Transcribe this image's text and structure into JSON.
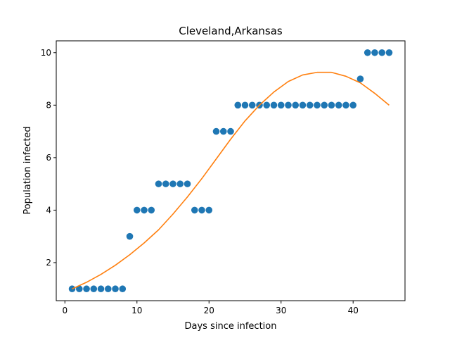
{
  "chart_data": {
    "type": "scatter",
    "title": "Cleveland,Arkansas",
    "xlabel": "Days since infection",
    "ylabel": "Population infected",
    "xlim": [
      -1.2,
      47.2
    ],
    "ylim": [
      0.55,
      10.45
    ],
    "xticks": [
      0,
      10,
      20,
      30,
      40
    ],
    "yticks": [
      2,
      4,
      6,
      8,
      10
    ],
    "grid": false,
    "series": [
      {
        "kind": "scatter",
        "color": "#1f77b4",
        "x": [
          1,
          2,
          3,
          4,
          5,
          6,
          7,
          8,
          9,
          10,
          11,
          12,
          13,
          14,
          15,
          16,
          17,
          18,
          19,
          20,
          21,
          22,
          23,
          24,
          25,
          26,
          27,
          28,
          29,
          30,
          31,
          32,
          33,
          34,
          35,
          36,
          37,
          38,
          39,
          40,
          41,
          42,
          43,
          44,
          45
        ],
        "y": [
          1,
          1,
          1,
          1,
          1,
          1,
          1,
          1,
          3,
          4,
          4,
          4,
          5,
          5,
          5,
          5,
          5,
          4,
          4,
          4,
          7,
          7,
          7,
          8,
          8,
          8,
          8,
          8,
          8,
          8,
          8,
          8,
          8,
          8,
          8,
          8,
          8,
          8,
          8,
          8,
          9,
          10,
          10,
          10,
          10
        ]
      },
      {
        "kind": "line",
        "color": "#ff7f0e",
        "x": [
          1,
          3,
          5,
          7,
          9,
          11,
          13,
          15,
          17,
          19,
          21,
          23,
          25,
          27,
          29,
          31,
          33,
          35,
          37,
          39,
          41,
          43,
          45
        ],
        "y": [
          1.0,
          1.25,
          1.55,
          1.9,
          2.3,
          2.75,
          3.25,
          3.85,
          4.5,
          5.2,
          5.95,
          6.7,
          7.4,
          8.0,
          8.5,
          8.9,
          9.15,
          9.25,
          9.25,
          9.1,
          8.85,
          8.45,
          8.0
        ]
      }
    ]
  }
}
